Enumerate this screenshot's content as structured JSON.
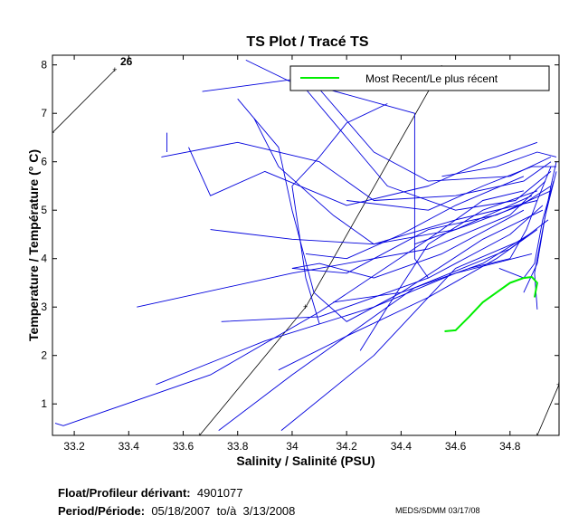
{
  "chart_data": {
    "type": "line",
    "title": "TS Plot / Tracé TS",
    "xlabel": "Salinity / Salinité (PSU)",
    "ylabel": "Temperature / Température (° C)",
    "xlim": [
      33.12,
      34.98
    ],
    "ylim": [
      0.35,
      8.2
    ],
    "x_ticks": [
      33.2,
      33.4,
      33.6,
      33.8,
      34,
      34.2,
      34.4,
      34.6,
      34.8
    ],
    "x_tick_labels": [
      "33.2",
      "33.4",
      "33.6",
      "33.8",
      "34",
      "34.2",
      "34.4",
      "34.6",
      "34.8"
    ],
    "y_ticks": [
      1,
      2,
      3,
      4,
      5,
      6,
      7,
      8
    ],
    "y_tick_labels": [
      "1",
      "2",
      "3",
      "4",
      "5",
      "6",
      "7",
      "8"
    ],
    "density_label": "26",
    "legend": {
      "label": "Most Recent/Le plus récent",
      "position": "top-right",
      "color": "#00ee00"
    },
    "history_color": "#0000dd",
    "recent_color": "#00ee00",
    "density_contours": [
      {
        "label": "26",
        "points": [
          [
            33.12,
            6.6
          ],
          [
            33.35,
            7.9
          ]
        ]
      },
      {
        "label": "",
        "points": [
          [
            33.66,
            0.35
          ],
          [
            34.05,
            3.0
          ],
          [
            34.55,
            7.95
          ]
        ]
      },
      {
        "label": "",
        "points": [
          [
            34.9,
            0.35
          ],
          [
            34.98,
            1.4
          ]
        ]
      }
    ],
    "series": [
      {
        "name": "history",
        "values": [
          [
            33.13,
            0.6
          ],
          [
            33.16,
            0.55
          ],
          [
            33.7,
            1.6
          ],
          [
            34.1,
            2.9
          ],
          [
            34.5,
            4.4
          ],
          [
            34.7,
            5.2
          ],
          [
            34.85,
            5.4
          ]
        ]
      },
      {
        "name": "history",
        "values": [
          [
            33.43,
            3.0
          ],
          [
            34.0,
            3.7
          ],
          [
            34.5,
            4.2
          ],
          [
            34.8,
            4.9
          ],
          [
            34.93,
            5.6
          ]
        ]
      },
      {
        "name": "history",
        "values": [
          [
            33.74,
            2.7
          ],
          [
            34.1,
            2.8
          ],
          [
            34.5,
            3.6
          ],
          [
            34.8,
            4.5
          ],
          [
            34.92,
            5.1
          ]
        ]
      },
      {
        "name": "history",
        "values": [
          [
            33.73,
            0.45
          ],
          [
            34.0,
            1.6
          ],
          [
            34.45,
            3.4
          ],
          [
            34.8,
            4.2
          ],
          [
            34.94,
            4.8
          ]
        ]
      },
      {
        "name": "history",
        "values": [
          [
            33.96,
            0.45
          ],
          [
            34.3,
            2.0
          ],
          [
            34.6,
            3.8
          ],
          [
            34.85,
            4.4
          ]
        ]
      },
      {
        "name": "history",
        "values": [
          [
            33.52,
            6.1
          ],
          [
            33.8,
            6.4
          ],
          [
            34.1,
            6.0
          ],
          [
            34.3,
            5.2
          ],
          [
            34.6,
            5.3
          ],
          [
            34.85,
            5.6
          ],
          [
            34.95,
            6.0
          ]
        ]
      },
      {
        "name": "history",
        "values": [
          [
            33.54,
            6.6
          ],
          [
            33.54,
            6.2
          ]
        ]
      },
      {
        "name": "history",
        "values": [
          [
            33.67,
            7.45
          ],
          [
            34.0,
            7.7
          ],
          [
            34.45,
            7.0
          ],
          [
            34.45,
            4.0
          ],
          [
            34.5,
            3.6
          ]
        ]
      },
      {
        "name": "history",
        "values": [
          [
            33.62,
            6.3
          ],
          [
            33.7,
            5.3
          ],
          [
            33.9,
            5.8
          ],
          [
            34.2,
            5.1
          ],
          [
            34.5,
            5.5
          ],
          [
            34.7,
            6.0
          ],
          [
            34.9,
            6.4
          ]
        ]
      },
      {
        "name": "history",
        "values": [
          [
            33.83,
            8.1
          ],
          [
            34.05,
            7.5
          ],
          [
            34.2,
            6.5
          ],
          [
            34.35,
            5.5
          ],
          [
            34.6,
            5.0
          ],
          [
            34.82,
            5.2
          ],
          [
            34.95,
            5.8
          ]
        ]
      },
      {
        "name": "history",
        "values": [
          [
            33.8,
            7.3
          ],
          [
            33.95,
            6.3
          ],
          [
            34.0,
            5.0
          ],
          [
            34.08,
            3.3
          ],
          [
            34.2,
            2.7
          ],
          [
            34.4,
            3.3
          ],
          [
            34.7,
            4.4
          ],
          [
            34.92,
            5.0
          ]
        ]
      },
      {
        "name": "history",
        "values": [
          [
            33.86,
            6.9
          ],
          [
            33.95,
            5.9
          ],
          [
            34.15,
            4.9
          ],
          [
            34.3,
            4.3
          ],
          [
            34.6,
            4.6
          ],
          [
            34.88,
            5.3
          ]
        ]
      },
      {
        "name": "history",
        "values": [
          [
            34.1,
            2.65
          ],
          [
            34.05,
            3.6
          ],
          [
            34.0,
            5.5
          ],
          [
            34.1,
            6.1
          ],
          [
            34.2,
            6.8
          ],
          [
            34.35,
            7.2
          ]
        ]
      },
      {
        "name": "history",
        "values": [
          [
            34.1,
            7.5
          ],
          [
            34.3,
            6.2
          ],
          [
            34.5,
            5.6
          ],
          [
            34.8,
            5.7
          ],
          [
            34.95,
            6.1
          ]
        ]
      },
      {
        "name": "history",
        "values": [
          [
            34.25,
            2.1
          ],
          [
            34.35,
            3.0
          ],
          [
            34.5,
            4.3
          ],
          [
            34.7,
            5.0
          ],
          [
            34.9,
            5.4
          ]
        ]
      },
      {
        "name": "history",
        "values": [
          [
            34.05,
            4.1
          ],
          [
            34.2,
            4.0
          ],
          [
            34.4,
            4.5
          ],
          [
            34.6,
            5.1
          ],
          [
            34.85,
            5.7
          ]
        ]
      },
      {
        "name": "history",
        "values": [
          [
            33.95,
            1.7
          ],
          [
            34.2,
            2.4
          ],
          [
            34.5,
            3.2
          ],
          [
            34.75,
            4.0
          ],
          [
            34.9,
            4.6
          ]
        ]
      },
      {
        "name": "history",
        "values": [
          [
            33.5,
            1.4
          ],
          [
            33.9,
            2.3
          ],
          [
            34.3,
            3.0
          ],
          [
            34.6,
            3.7
          ],
          [
            34.88,
            4.1
          ]
        ]
      },
      {
        "name": "history",
        "values": [
          [
            34.15,
            3.1
          ],
          [
            34.4,
            3.3
          ],
          [
            34.7,
            3.9
          ],
          [
            34.87,
            4.5
          ]
        ]
      },
      {
        "name": "history",
        "values": [
          [
            33.7,
            4.6
          ],
          [
            34.0,
            4.4
          ],
          [
            34.3,
            4.3
          ],
          [
            34.6,
            4.8
          ],
          [
            34.9,
            5.2
          ]
        ]
      },
      {
        "name": "history",
        "values": [
          [
            34.0,
            3.8
          ],
          [
            34.2,
            3.7
          ],
          [
            34.5,
            4.6
          ],
          [
            34.75,
            4.9
          ],
          [
            34.95,
            5.4
          ]
        ]
      },
      {
        "name": "history",
        "values": [
          [
            34.0,
            3.8
          ],
          [
            34.1,
            3.9
          ],
          [
            34.3,
            3.6
          ],
          [
            34.55,
            4.1
          ],
          [
            34.85,
            5.0
          ]
        ]
      },
      {
        "name": "history",
        "values": [
          [
            34.55,
            5.7
          ],
          [
            34.75,
            5.9
          ],
          [
            34.9,
            6.2
          ],
          [
            34.97,
            6.1
          ]
        ]
      },
      {
        "name": "history",
        "values": [
          [
            34.2,
            5.2
          ],
          [
            34.5,
            5.0
          ],
          [
            34.7,
            5.5
          ],
          [
            34.88,
            5.9
          ],
          [
            34.97,
            5.9
          ]
        ]
      },
      {
        "name": "history",
        "values": [
          [
            34.45,
            4.3
          ],
          [
            34.65,
            4.7
          ],
          [
            34.84,
            5.1
          ],
          [
            34.95,
            5.5
          ]
        ]
      },
      {
        "name": "history",
        "values": [
          [
            34.65,
            3.8
          ],
          [
            34.8,
            4.0
          ],
          [
            34.86,
            4.6
          ],
          [
            34.9,
            5.2
          ],
          [
            34.95,
            5.9
          ]
        ]
      },
      {
        "name": "history",
        "values": [
          [
            34.76,
            3.8
          ],
          [
            34.85,
            3.6
          ],
          [
            34.89,
            3.9
          ],
          [
            34.92,
            4.8
          ],
          [
            34.96,
            5.6
          ]
        ]
      },
      {
        "name": "history",
        "values": [
          [
            34.9,
            2.95
          ],
          [
            34.89,
            3.7
          ],
          [
            34.92,
            4.6
          ],
          [
            34.95,
            5.5
          ],
          [
            34.97,
            6.0
          ]
        ]
      },
      {
        "name": "history",
        "values": [
          [
            34.85,
            3.3
          ],
          [
            34.9,
            3.9
          ],
          [
            34.93,
            4.9
          ],
          [
            34.97,
            5.8
          ]
        ]
      },
      {
        "name": "recent",
        "values": [
          [
            34.56,
            2.5
          ],
          [
            34.6,
            2.52
          ],
          [
            34.65,
            2.8
          ],
          [
            34.7,
            3.1
          ],
          [
            34.75,
            3.3
          ],
          [
            34.8,
            3.5
          ],
          [
            34.85,
            3.6
          ],
          [
            34.88,
            3.62
          ],
          [
            34.9,
            3.5
          ],
          [
            34.89,
            3.2
          ]
        ]
      }
    ]
  },
  "footer": {
    "float_label": "Float/Profileur dérivant:",
    "float_id": "4901077",
    "period_label": "Period/Période:",
    "period_start": "05/18/2007",
    "to_label": "to/à",
    "period_end": "3/13/2008",
    "credit": "MEDS/SDMM  03/17/08"
  }
}
